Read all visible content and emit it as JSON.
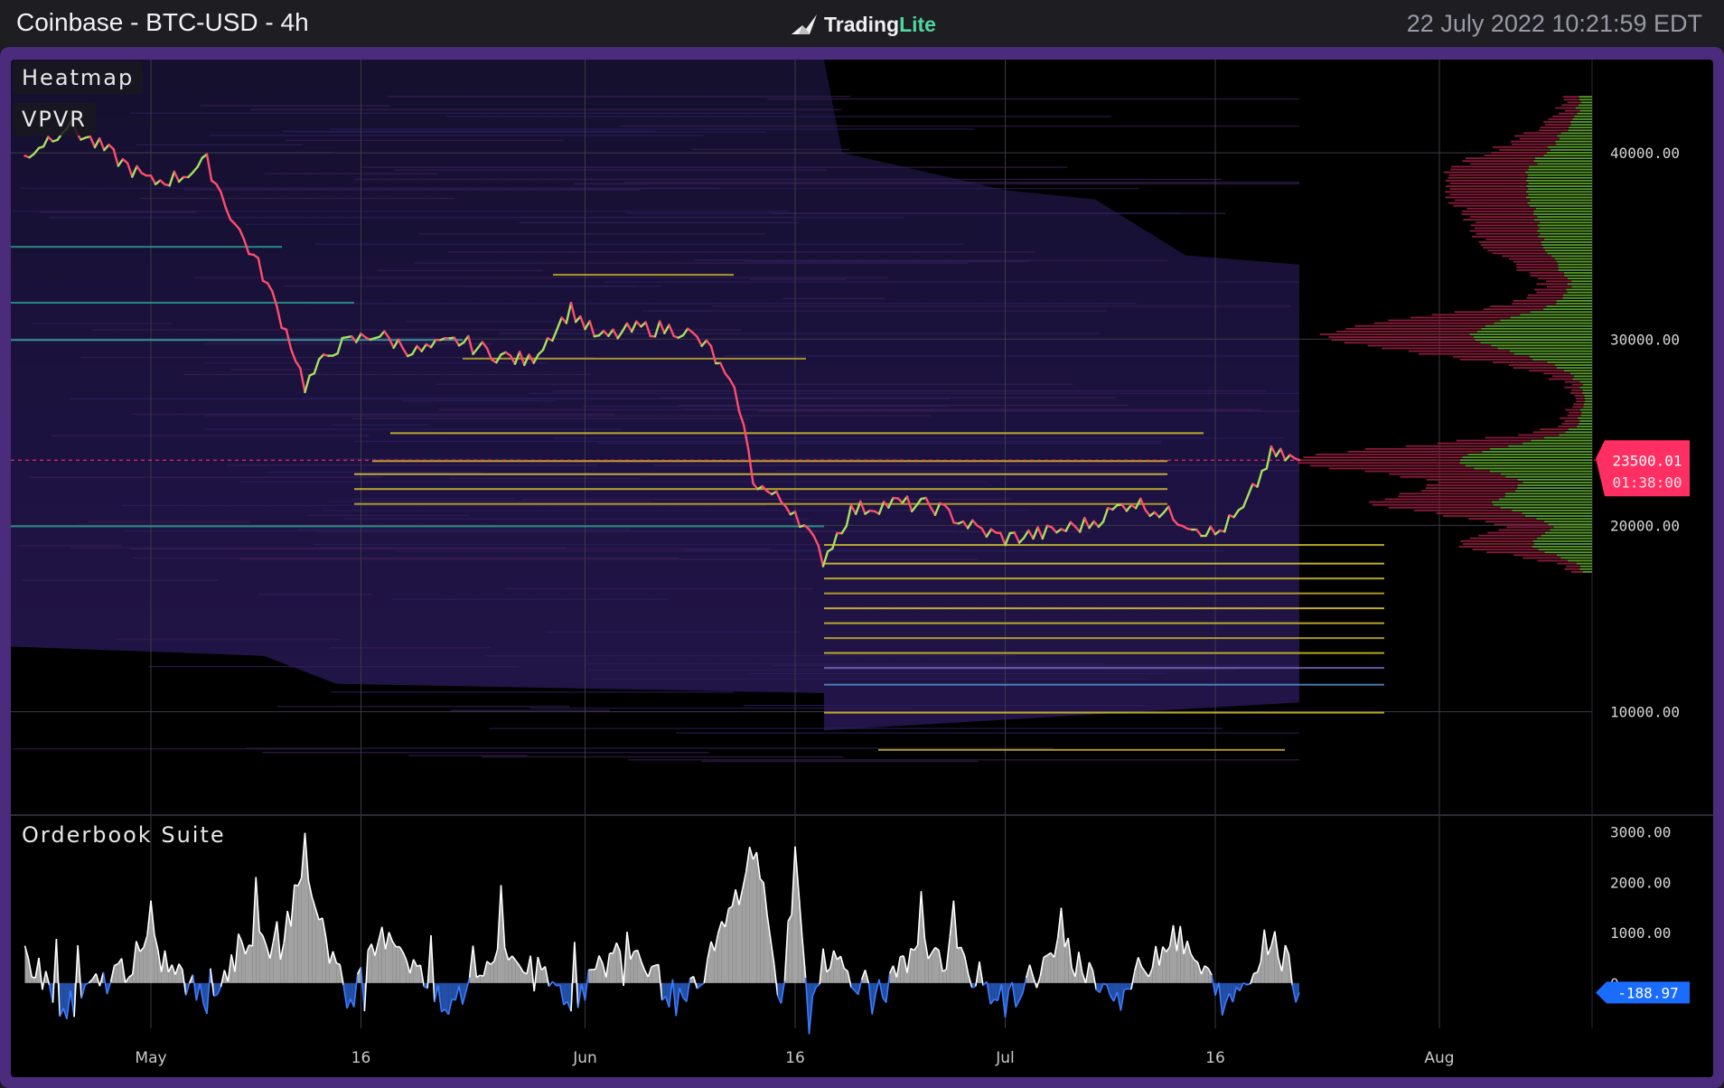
{
  "header": {
    "title": "Coinbase - BTC-USD - 4h",
    "logo_main": "Trading",
    "logo_accent": "Lite",
    "timestamp": "22 July 2022 10:21:59 EDT"
  },
  "panes": {
    "main_label_1": "Heatmap",
    "main_label_2": "VPVR",
    "sub_label": "Orderbook Suite"
  },
  "colors": {
    "bull": "#a8e05f",
    "bear": "#ff4d6d",
    "price_tag": "#ff2e63",
    "sub_tag": "#1a6cff",
    "vp_bid": "#5a9e2a",
    "vp_ask": "#8a1b3a",
    "sub_positive": "#bdbdbd",
    "sub_negative": "#2d6be0",
    "frame": "#4b2b7c"
  },
  "chart_data": [
    {
      "type": "line",
      "title": "Coinbase - BTC-USD - 4h",
      "series": [
        {
          "values_x": [
            "Apr 22",
            "Apr 25",
            "Apr 28",
            "May 1",
            "May 3",
            "May 5",
            "May 7",
            "May 9",
            "May 11",
            "May 12",
            "May 14",
            "May 17",
            "May 20",
            "May 23",
            "May 26",
            "May 28",
            "May 31",
            "Jun 2",
            "Jun 5",
            "Jun 8",
            "Jun 10",
            "Jun 12",
            "Jun 13",
            "Jun 14",
            "Jun 16",
            "Jun 18",
            "Jun 20",
            "Jun 23",
            "Jun 26",
            "Jun 29",
            "Jul 1",
            "Jul 4",
            "Jul 7",
            "Jul 10",
            "Jul 13",
            "Jul 16",
            "Jul 18",
            "Jul 20",
            "Jul 22"
          ],
          "values_y": [
            39800,
            41500,
            40000,
            38400,
            38700,
            39500,
            36200,
            33500,
            29800,
            27500,
            29500,
            30300,
            29300,
            29900,
            29100,
            28800,
            31600,
            30000,
            30600,
            30500,
            29400,
            26500,
            22500,
            21800,
            20800,
            18200,
            20800,
            21200,
            21000,
            19800,
            19300,
            19600,
            20100,
            21300,
            20500,
            19500,
            20800,
            23800,
            23500
          ]
        }
      ],
      "last_price_label": "23500.01",
      "countdown_label": "01:38:00",
      "x_tick_labels": [
        "May",
        "16",
        "Jun",
        "16",
        "Jul",
        "16",
        "Aug"
      ],
      "y_tick_labels": [
        "40000.00",
        "30000.00",
        "20000.00",
        "10000.00"
      ],
      "ylim": [
        4500,
        45000
      ],
      "grid": true,
      "overlays": [
        "Heatmap",
        "VPVR"
      ]
    },
    {
      "type": "area",
      "title": "Orderbook Suite",
      "y_tick_labels": [
        "3000.00",
        "2000.00",
        "1000.00",
        "0"
      ],
      "ylim": [
        -900,
        3300
      ],
      "last_value_label": "-188.97",
      "series": [
        {
          "name": "Orderbook Suite",
          "values_x": [
            "Apr 22",
            "Apr 25",
            "May 1",
            "May 5",
            "May 8",
            "May 10",
            "May 12",
            "May 15",
            "May 18",
            "May 22",
            "May 26",
            "May 31",
            "Jun 4",
            "Jun 8",
            "Jun 11",
            "Jun 13",
            "Jun 14",
            "Jun 15",
            "Jun 16",
            "Jun 17",
            "Jun 18",
            "Jun 22",
            "Jun 26",
            "Jul 1",
            "Jul 5",
            "Jul 9",
            "Jul 13",
            "Jul 17",
            "Jul 20",
            "Jul 22"
          ],
          "values_y": [
            600,
            -500,
            700,
            -400,
            1000,
            600,
            2300,
            -400,
            1100,
            -600,
            700,
            -300,
            800,
            -500,
            1100,
            2700,
            1500,
            -600,
            2400,
            -700,
            600,
            -200,
            900,
            -400,
            700,
            -300,
            1000,
            -500,
            1000,
            -189
          ]
        }
      ]
    }
  ]
}
